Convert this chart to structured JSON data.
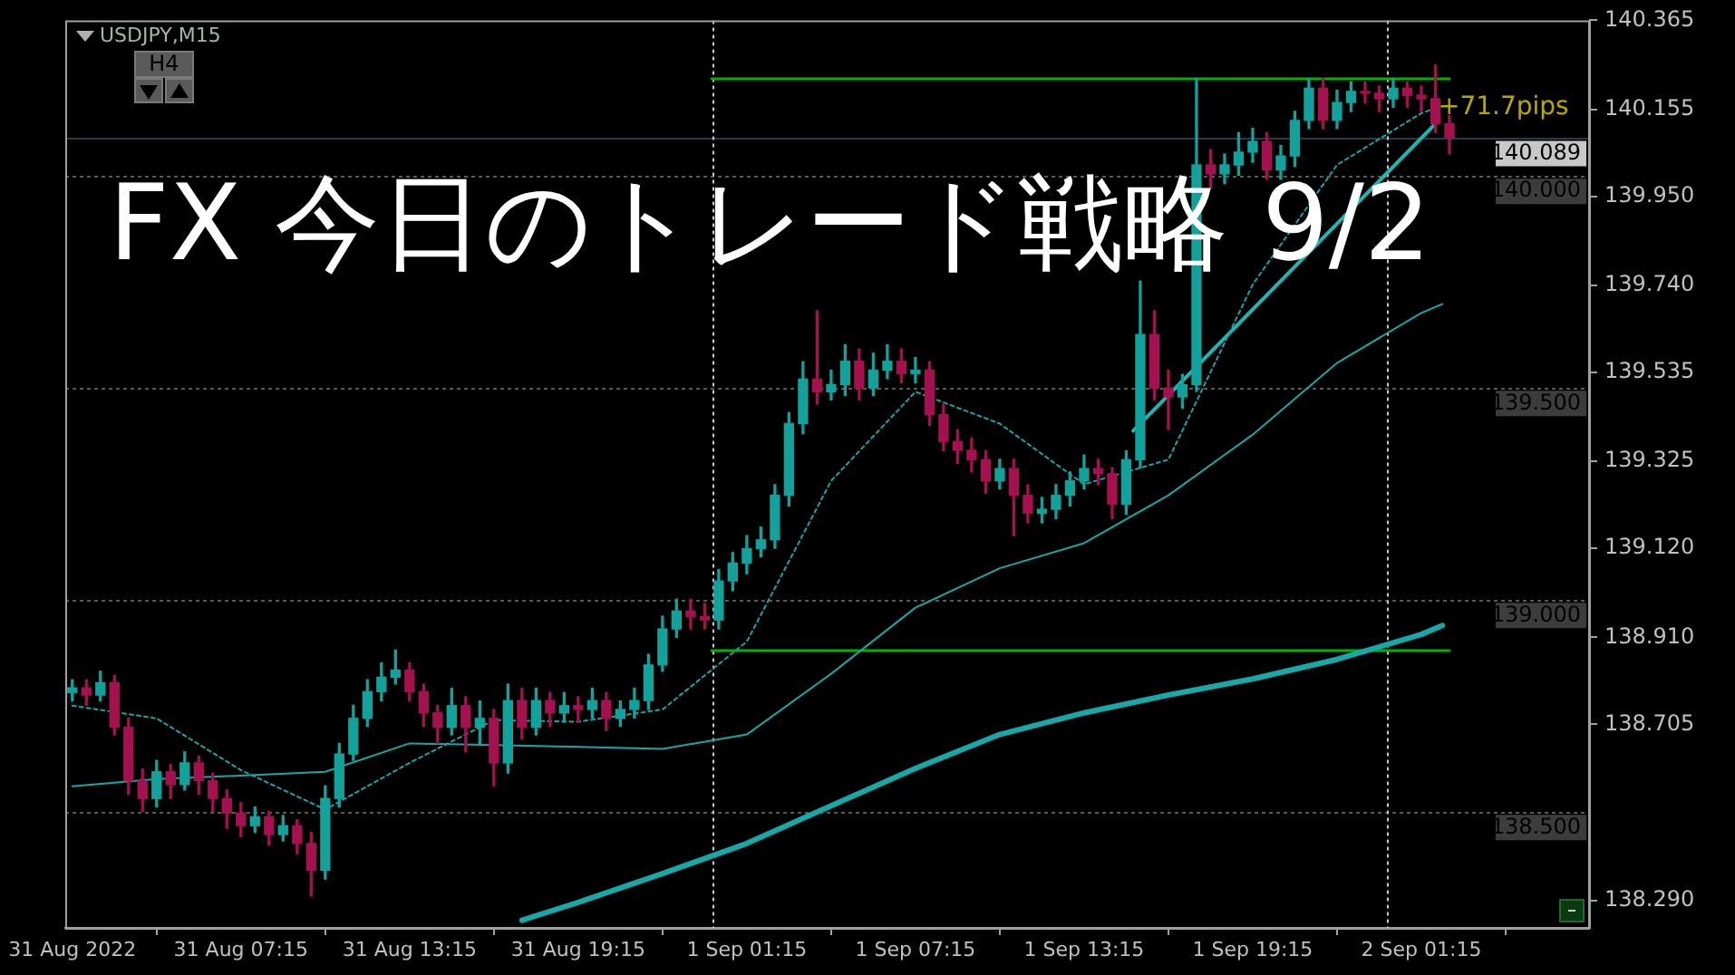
{
  "chart_data": {
    "type": "candlestick",
    "title": "FX 今日のトレード戦略 9/2",
    "annotations": [
      "USDJPY,M15",
      "H4",
      {
        "text": "+71.7pips",
        "x": "2022-09-02T02:15",
        "y": 140.16
      }
    ],
    "x": [
      "2022-08-31T01:15",
      "2022-08-31T01:45",
      "2022-08-31T02:15",
      "2022-08-31T02:45",
      "2022-08-31T03:15",
      "2022-08-31T03:45",
      "2022-08-31T04:15",
      "2022-08-31T04:45",
      "2022-08-31T05:15",
      "2022-08-31T05:45",
      "2022-08-31T06:15",
      "2022-08-31T06:45",
      "2022-08-31T07:15",
      "2022-08-31T07:45",
      "2022-08-31T08:15",
      "2022-08-31T08:45",
      "2022-08-31T09:15",
      "2022-08-31T09:45",
      "2022-08-31T10:15",
      "2022-08-31T10:45",
      "2022-08-31T11:15",
      "2022-08-31T11:45",
      "2022-08-31T12:15",
      "2022-08-31T12:45",
      "2022-08-31T13:15",
      "2022-08-31T13:45",
      "2022-08-31T14:15",
      "2022-08-31T14:45",
      "2022-08-31T15:15",
      "2022-08-31T15:45",
      "2022-08-31T16:15",
      "2022-08-31T16:45",
      "2022-08-31T17:15",
      "2022-08-31T17:45",
      "2022-08-31T18:15",
      "2022-08-31T18:45",
      "2022-08-31T19:15",
      "2022-08-31T19:45",
      "2022-08-31T20:15",
      "2022-08-31T20:45",
      "2022-08-31T21:15",
      "2022-08-31T21:45",
      "2022-08-31T22:15",
      "2022-08-31T22:45",
      "2022-08-31T23:15",
      "2022-08-31T23:45",
      "2022-09-01T00:15",
      "2022-09-01T00:45",
      "2022-09-01T01:15",
      "2022-09-01T01:45",
      "2022-09-01T02:15",
      "2022-09-01T02:45",
      "2022-09-01T03:15",
      "2022-09-01T03:45",
      "2022-09-01T04:15",
      "2022-09-01T04:45",
      "2022-09-01T05:15",
      "2022-09-01T05:45",
      "2022-09-01T06:15",
      "2022-09-01T06:45",
      "2022-09-01T07:15",
      "2022-09-01T07:45",
      "2022-09-01T08:15",
      "2022-09-01T08:45",
      "2022-09-01T09:15",
      "2022-09-01T09:45",
      "2022-09-01T10:15",
      "2022-09-01T10:45",
      "2022-09-01T11:15",
      "2022-09-01T11:45",
      "2022-09-01T12:15",
      "2022-09-01T12:45",
      "2022-09-01T13:15",
      "2022-09-01T13:45",
      "2022-09-01T14:15",
      "2022-09-01T14:45",
      "2022-09-01T15:15",
      "2022-09-01T15:45",
      "2022-09-01T16:15",
      "2022-09-01T16:45",
      "2022-09-01T17:15",
      "2022-09-01T17:45",
      "2022-09-01T18:15",
      "2022-09-01T18:45",
      "2022-09-01T19:15",
      "2022-09-01T19:45",
      "2022-09-01T20:15",
      "2022-09-01T20:45",
      "2022-09-01T21:15",
      "2022-09-01T21:45",
      "2022-09-01T22:15",
      "2022-09-01T22:45",
      "2022-09-01T23:15",
      "2022-09-01T23:45",
      "2022-09-02T00:15",
      "2022-09-02T00:45",
      "2022-09-02T01:15",
      "2022-09-02T01:45",
      "2022-09-02T02:15"
    ],
    "ohlc": [
      [
        138.78,
        138.81,
        138.76,
        138.791
      ],
      [
        138.791,
        138.81,
        138.75,
        138.774
      ],
      [
        138.774,
        138.83,
        138.76,
        138.803
      ],
      [
        138.803,
        138.82,
        138.68,
        138.698
      ],
      [
        138.698,
        138.72,
        138.54,
        138.572
      ],
      [
        138.572,
        138.6,
        138.5,
        138.53
      ],
      [
        138.53,
        138.62,
        138.51,
        138.593
      ],
      [
        138.593,
        138.61,
        138.53,
        138.563
      ],
      [
        138.563,
        138.64,
        138.55,
        138.614
      ],
      [
        138.614,
        138.63,
        138.54,
        138.572
      ],
      [
        138.572,
        138.59,
        138.5,
        138.53
      ],
      [
        138.53,
        138.55,
        138.46,
        138.496
      ],
      [
        138.496,
        138.52,
        138.44,
        138.466
      ],
      [
        138.466,
        138.51,
        138.45,
        138.487
      ],
      [
        138.487,
        138.5,
        138.42,
        138.445
      ],
      [
        138.445,
        138.49,
        138.43,
        138.466
      ],
      [
        138.466,
        138.48,
        138.4,
        138.424
      ],
      [
        138.424,
        138.45,
        138.3,
        138.361
      ],
      [
        138.361,
        138.56,
        138.34,
        138.53
      ],
      [
        138.53,
        138.66,
        138.51,
        138.635
      ],
      [
        138.635,
        138.75,
        138.62,
        138.719
      ],
      [
        138.719,
        138.81,
        138.7,
        138.782
      ],
      [
        138.782,
        138.85,
        138.76,
        138.816
      ],
      [
        138.816,
        138.88,
        138.8,
        138.833
      ],
      [
        138.833,
        138.85,
        138.76,
        138.782
      ],
      [
        138.782,
        138.8,
        138.7,
        138.732
      ],
      [
        138.732,
        138.75,
        138.66,
        138.698
      ],
      [
        138.698,
        138.79,
        138.68,
        138.749
      ],
      [
        138.749,
        138.77,
        138.64,
        138.698
      ],
      [
        138.698,
        138.76,
        138.66,
        138.719
      ],
      [
        138.719,
        138.74,
        138.56,
        138.614
      ],
      [
        138.614,
        138.8,
        138.59,
        138.761
      ],
      [
        138.761,
        138.79,
        138.67,
        138.698
      ],
      [
        138.698,
        138.79,
        138.68,
        138.761
      ],
      [
        138.761,
        138.78,
        138.7,
        138.732
      ],
      [
        138.732,
        138.78,
        138.71,
        138.749
      ],
      [
        138.749,
        138.77,
        138.71,
        138.74
      ],
      [
        138.74,
        138.79,
        138.72,
        138.761
      ],
      [
        138.761,
        138.78,
        138.69,
        138.719
      ],
      [
        138.719,
        138.76,
        138.7,
        138.74
      ],
      [
        138.74,
        138.79,
        138.72,
        138.761
      ],
      [
        138.761,
        138.87,
        138.74,
        138.845
      ],
      [
        138.845,
        138.96,
        138.83,
        138.93
      ],
      [
        138.93,
        139.0,
        138.91,
        138.972
      ],
      [
        138.972,
        139.0,
        138.93,
        138.959
      ],
      [
        138.959,
        138.99,
        138.93,
        138.951
      ],
      [
        138.951,
        139.07,
        138.93,
        139.043
      ],
      [
        139.043,
        139.11,
        139.02,
        139.085
      ],
      [
        139.085,
        139.15,
        139.06,
        139.119
      ],
      [
        139.119,
        139.17,
        139.1,
        139.14
      ],
      [
        139.14,
        139.27,
        139.12,
        139.245
      ],
      [
        139.245,
        139.44,
        139.22,
        139.414
      ],
      [
        139.414,
        139.56,
        139.39,
        139.519
      ],
      [
        139.519,
        139.68,
        139.46,
        139.489
      ],
      [
        139.489,
        139.54,
        139.47,
        139.506
      ],
      [
        139.506,
        139.6,
        139.48,
        139.561
      ],
      [
        139.561,
        139.59,
        139.47,
        139.498
      ],
      [
        139.498,
        139.58,
        139.48,
        139.54
      ],
      [
        139.54,
        139.6,
        139.52,
        139.561
      ],
      [
        139.561,
        139.59,
        139.51,
        139.532
      ],
      [
        139.532,
        139.57,
        139.51,
        139.54
      ],
      [
        139.54,
        139.56,
        139.41,
        139.435
      ],
      [
        139.435,
        139.46,
        139.35,
        139.372
      ],
      [
        139.372,
        139.4,
        139.32,
        139.351
      ],
      [
        139.351,
        139.38,
        139.3,
        139.329
      ],
      [
        139.329,
        139.35,
        139.25,
        139.279
      ],
      [
        139.279,
        139.33,
        139.26,
        139.308
      ],
      [
        139.308,
        139.33,
        139.15,
        139.245
      ],
      [
        139.245,
        139.27,
        139.18,
        139.203
      ],
      [
        139.203,
        139.24,
        139.18,
        139.212
      ],
      [
        139.212,
        139.27,
        139.19,
        139.245
      ],
      [
        139.245,
        139.3,
        139.22,
        139.279
      ],
      [
        139.279,
        139.34,
        139.26,
        139.308
      ],
      [
        139.308,
        139.33,
        139.27,
        139.296
      ],
      [
        139.296,
        139.31,
        139.19,
        139.224
      ],
      [
        139.224,
        139.35,
        139.2,
        139.329
      ],
      [
        139.329,
        139.75,
        139.31,
        139.624
      ],
      [
        139.624,
        139.68,
        139.47,
        139.498
      ],
      [
        139.498,
        139.54,
        139.4,
        139.477
      ],
      [
        139.477,
        139.53,
        139.45,
        139.506
      ],
      [
        139.506,
        140.227,
        139.49,
        140.024
      ],
      [
        140.024,
        140.06,
        139.97,
        140.003
      ],
      [
        140.003,
        140.05,
        139.98,
        140.024
      ],
      [
        140.024,
        140.1,
        140.0,
        140.054
      ],
      [
        140.054,
        140.11,
        140.03,
        140.079
      ],
      [
        140.079,
        140.1,
        139.99,
        140.012
      ],
      [
        140.012,
        140.07,
        139.99,
        140.045
      ],
      [
        140.045,
        140.15,
        140.02,
        140.129
      ],
      [
        140.129,
        140.227,
        140.11,
        140.205
      ],
      [
        140.205,
        140.227,
        140.11,
        140.129
      ],
      [
        140.129,
        140.2,
        140.11,
        140.171
      ],
      [
        140.171,
        140.22,
        140.15,
        140.197
      ],
      [
        140.197,
        140.22,
        140.17,
        140.193
      ],
      [
        140.193,
        140.21,
        140.15,
        140.18
      ],
      [
        140.18,
        140.227,
        140.16,
        140.205
      ],
      [
        140.205,
        140.22,
        140.16,
        140.188
      ],
      [
        140.188,
        140.21,
        140.15,
        140.18
      ],
      [
        140.18,
        140.26,
        140.1,
        140.121
      ],
      [
        140.121,
        140.14,
        140.05,
        140.089
      ]
    ],
    "colors": [
      "#12a19b",
      "#a3124f",
      "#12a19b",
      "#a3124f",
      "#a3124f",
      "#a3124f",
      "#12a19b",
      "#a3124f",
      "#12a19b",
      "#a3124f",
      "#a3124f",
      "#a3124f",
      "#a3124f",
      "#12a19b",
      "#a3124f",
      "#12a19b",
      "#a3124f",
      "#a3124f",
      "#12a19b",
      "#12a19b",
      "#12a19b",
      "#12a19b",
      "#12a19b",
      "#12a19b",
      "#a3124f",
      "#a3124f",
      "#a3124f",
      "#12a19b",
      "#a3124f",
      "#12a19b",
      "#a3124f",
      "#12a19b",
      "#a3124f",
      "#12a19b",
      "#a3124f",
      "#12a19b",
      "#a3124f",
      "#12a19b",
      "#a3124f",
      "#12a19b",
      "#12a19b",
      "#12a19b",
      "#12a19b",
      "#12a19b",
      "#a3124f",
      "#a3124f",
      "#12a19b",
      "#12a19b",
      "#12a19b",
      "#12a19b",
      "#12a19b",
      "#12a19b",
      "#12a19b",
      "#a3124f",
      "#12a19b",
      "#12a19b",
      "#a3124f",
      "#12a19b",
      "#12a19b",
      "#a3124f",
      "#12a19b",
      "#a3124f",
      "#a3124f",
      "#a3124f",
      "#a3124f",
      "#a3124f",
      "#12a19b",
      "#a3124f",
      "#a3124f",
      "#12a19b",
      "#12a19b",
      "#12a19b",
      "#12a19b",
      "#a3124f",
      "#a3124f",
      "#12a19b",
      "#12a19b",
      "#a3124f",
      "#a3124f",
      "#12a19b",
      "#12a19b",
      "#a3124f",
      "#12a19b",
      "#12a19b",
      "#12a19b",
      "#a3124f",
      "#12a19b",
      "#12a19b",
      "#12a19b",
      "#a3124f",
      "#12a19b",
      "#12a19b",
      "#a3124f",
      "#a3124f",
      "#12a19b",
      "#a3124f",
      "#a3124f",
      "#a3124f",
      "#a3124f"
    ],
    "series": [
      {
        "type": "line",
        "color": "#1aa6a6",
        "line_style": "dashed",
        "x": [
          "2022-08-31T01:15",
          "2022-08-31T04:15",
          "2022-08-31T07:15",
          "2022-08-31T10:15",
          "2022-08-31T13:15",
          "2022-08-31T16:15",
          "2022-08-31T19:15",
          "2022-08-31T22:15",
          "2022-09-01T01:15",
          "2022-09-01T04:15",
          "2022-09-01T07:15",
          "2022-09-01T10:15",
          "2022-09-01T13:15",
          "2022-09-01T16:15",
          "2022-09-01T19:15",
          "2022-09-01T22:15",
          "2022-09-02T01:15",
          "2022-09-02T02:00"
        ],
        "values": [
          138.749,
          138.719,
          138.597,
          138.504,
          138.614,
          138.715,
          138.711,
          138.74,
          138.9,
          139.279,
          139.489,
          139.414,
          139.271,
          139.329,
          139.742,
          140.024,
          140.146,
          140.163
        ]
      },
      {
        "type": "line",
        "color": "#1aa6a6",
        "line_style": "solid",
        "x": [
          "2022-08-31T01:15",
          "2022-08-31T04:15",
          "2022-08-31T07:15",
          "2022-08-31T10:15",
          "2022-08-31T13:15",
          "2022-08-31T16:15",
          "2022-08-31T19:15",
          "2022-08-31T22:15",
          "2022-09-01T01:15",
          "2022-09-01T04:15",
          "2022-09-01T07:15",
          "2022-09-01T10:15",
          "2022-09-01T13:15",
          "2022-09-01T16:15",
          "2022-09-01T19:15",
          "2022-09-01T22:15",
          "2022-09-02T01:15",
          "2022-09-02T02:00"
        ],
        "values": [
          138.559,
          138.576,
          138.584,
          138.593,
          138.66,
          138.656,
          138.652,
          138.647,
          138.681,
          138.824,
          138.98,
          139.073,
          139.132,
          139.245,
          139.388,
          139.557,
          139.675,
          139.696
        ]
      },
      {
        "type": "line",
        "color": "#17a8a8",
        "line_style": "solid",
        "x": [
          "2022-08-31T17:15",
          "2022-08-31T19:15",
          "2022-08-31T22:15",
          "2022-09-01T01:15",
          "2022-09-01T04:15",
          "2022-09-01T07:15",
          "2022-09-01T10:15",
          "2022-09-01T13:15",
          "2022-09-01T16:15",
          "2022-09-01T19:15",
          "2022-09-01T22:15",
          "2022-09-02T01:15",
          "2022-09-02T02:00"
        ],
        "values": [
          138.243,
          138.285,
          138.353,
          138.424,
          138.513,
          138.601,
          138.681,
          138.732,
          138.774,
          138.812,
          138.858,
          138.917,
          138.938
        ]
      },
      {
        "type": "line",
        "color": "#00b300",
        "line_style": "solid",
        "x": [
          "2022-09-01T00:00",
          "2022-09-02T02:15"
        ],
        "values": [
          140.227,
          140.227
        ]
      },
      {
        "type": "line",
        "color": "#00b300",
        "line_style": "solid",
        "x": [
          "2022-09-01T00:00",
          "2022-09-02T02:15"
        ],
        "values": [
          138.879,
          138.879
        ]
      },
      {
        "type": "line",
        "color": "#1fb5b5",
        "line_style": "solid",
        "x": [
          "2022-09-01T15:00",
          "2022-09-02T01:45"
        ],
        "values": [
          139.397,
          140.121
        ]
      }
    ],
    "xlim": [
      "2022-08-31T01:00",
      "2022-09-02T07:15"
    ],
    "xticks": [
      {
        "value": "2022-08-31T01:15",
        "label": "31 Aug 2022"
      },
      {
        "value": "2022-08-31T07:15",
        "label": "31 Aug 07:15"
      },
      {
        "value": "2022-08-31T13:15",
        "label": "31 Aug 13:15"
      },
      {
        "value": "2022-08-31T19:15",
        "label": "31 Aug 19:15"
      },
      {
        "value": "2022-09-01T01:15",
        "label": "1 Sep 01:15"
      },
      {
        "value": "2022-09-01T07:15",
        "label": "1 Sep 07:15"
      },
      {
        "value": "2022-09-01T13:15",
        "label": "1 Sep 13:15"
      },
      {
        "value": "2022-09-01T19:15",
        "label": "1 Sep 19:15"
      },
      {
        "value": "2022-09-02T01:15",
        "label": "2 Sep 01:15"
      }
    ],
    "ylim": [
      138.225,
      140.365
    ],
    "yticks": [
      140.365,
      140.155,
      {
        "value": 139.95,
        "label": "139.950"
      },
      {
        "value": 139.74,
        "label": "139.740"
      },
      139.535,
      139.325,
      {
        "value": 139.12,
        "label": "139.120"
      },
      {
        "value": 138.91,
        "label": "138.910"
      },
      138.705,
      {
        "value": 138.29,
        "label": "138.290"
      }
    ],
    "ref_lines": [
      {
        "axis": "y",
        "value": 140.089,
        "label": "140.089",
        "color": "#2b3a48",
        "line_style": "solid"
      },
      {
        "axis": "y",
        "value": 140.0,
        "label": "140.000",
        "color": "#5a5a5a",
        "line_style": "dashed"
      },
      {
        "axis": "y",
        "value": 139.5,
        "label": "139.500",
        "color": "#5a5a5a",
        "line_style": "dashed"
      },
      {
        "axis": "y",
        "value": 139.0,
        "label": "139.000",
        "color": "#5a5a5a",
        "line_style": "dashed"
      },
      {
        "axis": "y",
        "value": 138.5,
        "label": "138.500",
        "color": "#5a5a5a",
        "line_style": "dashed"
      },
      {
        "axis": "x",
        "value": "2022-09-01T00:00",
        "color": "#c8c8c8",
        "line_style": "dashed"
      },
      {
        "axis": "x",
        "value": "2022-09-02T00:00",
        "color": "#c8c8c8",
        "line_style": "dashed"
      }
    ],
    "legend": false,
    "grid": false
  }
}
